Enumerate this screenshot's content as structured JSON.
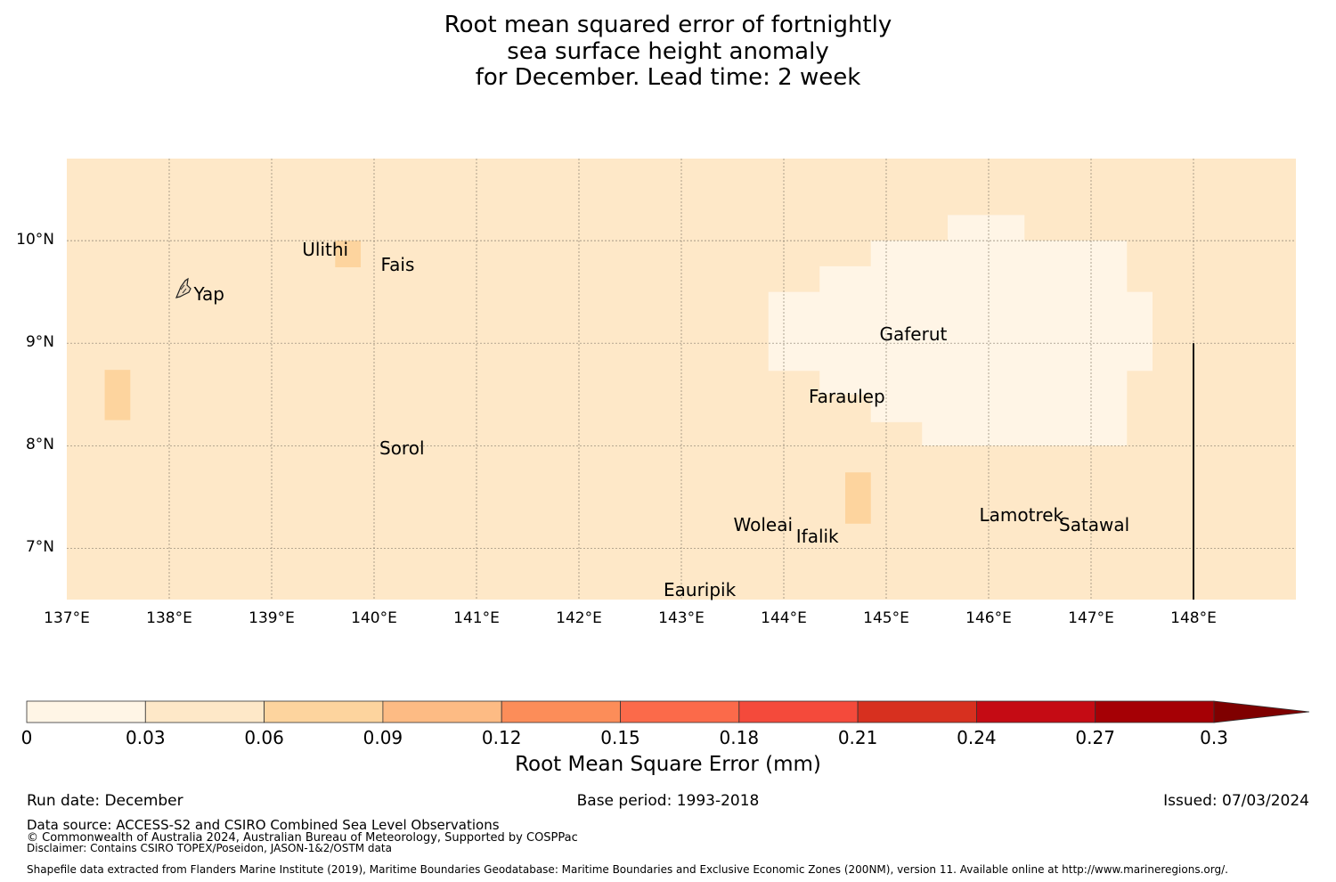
{
  "title": {
    "line1": "Root mean squared error of fortnightly",
    "line2": "sea surface height anomaly",
    "line3": "for December. Lead time: 2 week"
  },
  "map": {
    "extent": {
      "lon_min": 137.0,
      "lon_max": 149.0,
      "lat_min": 6.5,
      "lat_max": 10.8
    },
    "lat_labels": [
      "10°N",
      "9°N",
      "8°N",
      "7°N"
    ],
    "lat_values": [
      10,
      9,
      8,
      7
    ],
    "lon_labels": [
      "137°E",
      "138°E",
      "139°E",
      "140°E",
      "141°E",
      "142°E",
      "143°E",
      "144°E",
      "145°E",
      "146°E",
      "147°E",
      "148°E"
    ],
    "lon_values": [
      137,
      138,
      139,
      140,
      141,
      142,
      143,
      144,
      145,
      146,
      147,
      148
    ],
    "background_rmse_bin": "0.03-0.06",
    "anomaly_cells": [
      {
        "bin": "0-0.03",
        "lon": [
          143.85,
          147.6
        ],
        "lat": [
          8.73,
          9.5
        ]
      },
      {
        "bin": "0-0.03",
        "lon": [
          144.35,
          147.35
        ],
        "lat": [
          8.5,
          9.75
        ]
      },
      {
        "bin": "0-0.03",
        "lon": [
          144.85,
          147.1
        ],
        "lat": [
          8.23,
          10.0
        ]
      },
      {
        "bin": "0-0.03",
        "lon": [
          145.35,
          147.35
        ],
        "lat": [
          8.0,
          10.0
        ]
      },
      {
        "bin": "0-0.03",
        "lon": [
          145.6,
          146.35
        ],
        "lat": [
          10.0,
          10.25
        ]
      },
      {
        "bin": "0.06-0.09",
        "lon": [
          137.37,
          137.62
        ],
        "lat": [
          8.25,
          8.74
        ]
      },
      {
        "bin": "0.06-0.09",
        "lon": [
          139.62,
          139.87
        ],
        "lat": [
          9.74,
          10.0
        ]
      },
      {
        "bin": "0.06-0.09",
        "lon": [
          144.6,
          144.85
        ],
        "lat": [
          7.24,
          7.74
        ]
      }
    ],
    "boundary_line": {
      "lon": 148.0,
      "lat": [
        6.5,
        9.0
      ]
    },
    "islands": [
      {
        "name": "Yap",
        "lon": 138.1,
        "lat": 9.52
      },
      {
        "name": "Ulithi",
        "lon": 139.75,
        "lat": 10.0
      },
      {
        "name": "Fais",
        "lon": 140.5,
        "lat": 9.75
      },
      {
        "name": "Gaferut",
        "lon": 145.3,
        "lat": 9.2
      },
      {
        "name": "Faraulep",
        "lon": 144.6,
        "lat": 8.6
      },
      {
        "name": "Sorol",
        "lon": 140.4,
        "lat": 8.1
      },
      {
        "name": "Woleai",
        "lon": 143.9,
        "lat": 7.35
      },
      {
        "name": "Ifalik",
        "lon": 144.45,
        "lat": 7.25
      },
      {
        "name": "Lamotrek",
        "lon": 146.3,
        "lat": 7.45
      },
      {
        "name": "Satawal",
        "lon": 147.0,
        "lat": 7.35
      },
      {
        "name": "Eauripik",
        "lon": 143.2,
        "lat": 6.68
      }
    ]
  },
  "colorbar": {
    "label": "Root Mean Square Error (mm)",
    "ticks": [
      "0",
      "0.03",
      "0.06",
      "0.09",
      "0.12",
      "0.15",
      "0.18",
      "0.21",
      "0.24",
      "0.27",
      "0.3"
    ],
    "colors": [
      "#fff5e6",
      "#fee8c8",
      "#fdd49e",
      "#fdbb84",
      "#fc8d59",
      "#fb6a4a",
      "#f44a3b",
      "#d7301f",
      "#c50b14",
      "#a50005",
      "#7f0000"
    ],
    "extend": "max"
  },
  "footer": {
    "run_date": "Run date: December",
    "base_period": "Base period: 1993-2018",
    "issued": "Issued: 07/03/2024",
    "data_source": "Data source: ACCESS-S2 and CSIRO Combined Sea Level Observations",
    "copyright": "© Commonwealth of Australia 2024, Australian Bureau of Meteorology, Supported by COSPPac",
    "disclaimer": "Disclaimer: Contains CSIRO TOPEX/Poseidon, JASON-1&2/OSTM data",
    "shapefile": "Shapefile data extracted from Flanders Marine Institute (2019), Maritime Boundaries Geodatabase: Maritime Boundaries and Exclusive Economic Zones (200NM), version 11. Available online at http://www.marineregions.org/."
  }
}
